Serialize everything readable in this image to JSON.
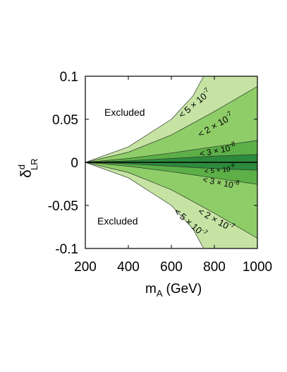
{
  "chart_data": {
    "type": "area",
    "xlabel_main": "m",
    "xlabel_sub": "A",
    "xlabel_unit": "(GeV)",
    "ylabel_main": "δ",
    "ylabel_sup": "d",
    "ylabel_sub": "LR",
    "xlim": [
      200,
      1000
    ],
    "ylim": [
      -0.1,
      0.1
    ],
    "grid": false,
    "x_ticks": [
      200,
      400,
      600,
      800,
      1000
    ],
    "x_tick_labels": [
      "200",
      "400",
      "600",
      "800",
      "1000"
    ],
    "y_ticks": [
      0.1,
      0.05,
      0,
      -0.05,
      -0.1
    ],
    "y_tick_labels": [
      "0.1",
      "0.05",
      "0",
      "-0.05",
      "-0.1"
    ],
    "bands": [
      {
        "label_lt": "<",
        "label_mant": "5 × 10",
        "label_exp": "-7",
        "color": "#c6e3a4",
        "boundary_x": [
          200,
          400,
          600,
          700,
          750
        ],
        "boundary_y": [
          0,
          0.018,
          0.05,
          0.077,
          0.1
        ]
      },
      {
        "label_lt": "<",
        "label_mant": "2 × 10",
        "label_exp": "-7",
        "color": "#8fcd68",
        "boundary_x": [
          200,
          400,
          600,
          800,
          1000
        ],
        "boundary_y": [
          0,
          0.0118,
          0.0318,
          0.0591,
          0.0882
        ]
      },
      {
        "label_lt": "<",
        "label_mant": "3 × 10",
        "label_exp": "-8",
        "color": "#5daf48",
        "boundary_x": [
          200,
          400,
          600,
          800,
          1000
        ],
        "boundary_y": [
          0,
          0.0045,
          0.0109,
          0.0182,
          0.0255
        ]
      },
      {
        "label_lt": "<",
        "label_mant": "5 × 10",
        "label_exp": "-9",
        "color": "#2c8a3c",
        "boundary_x": [
          200,
          400,
          600,
          800,
          1000
        ],
        "boundary_y": [
          0,
          0.0018,
          0.0045,
          0.0073,
          0.0091
        ]
      }
    ],
    "annotations": [
      "Excluded",
      "Excluded"
    ]
  }
}
